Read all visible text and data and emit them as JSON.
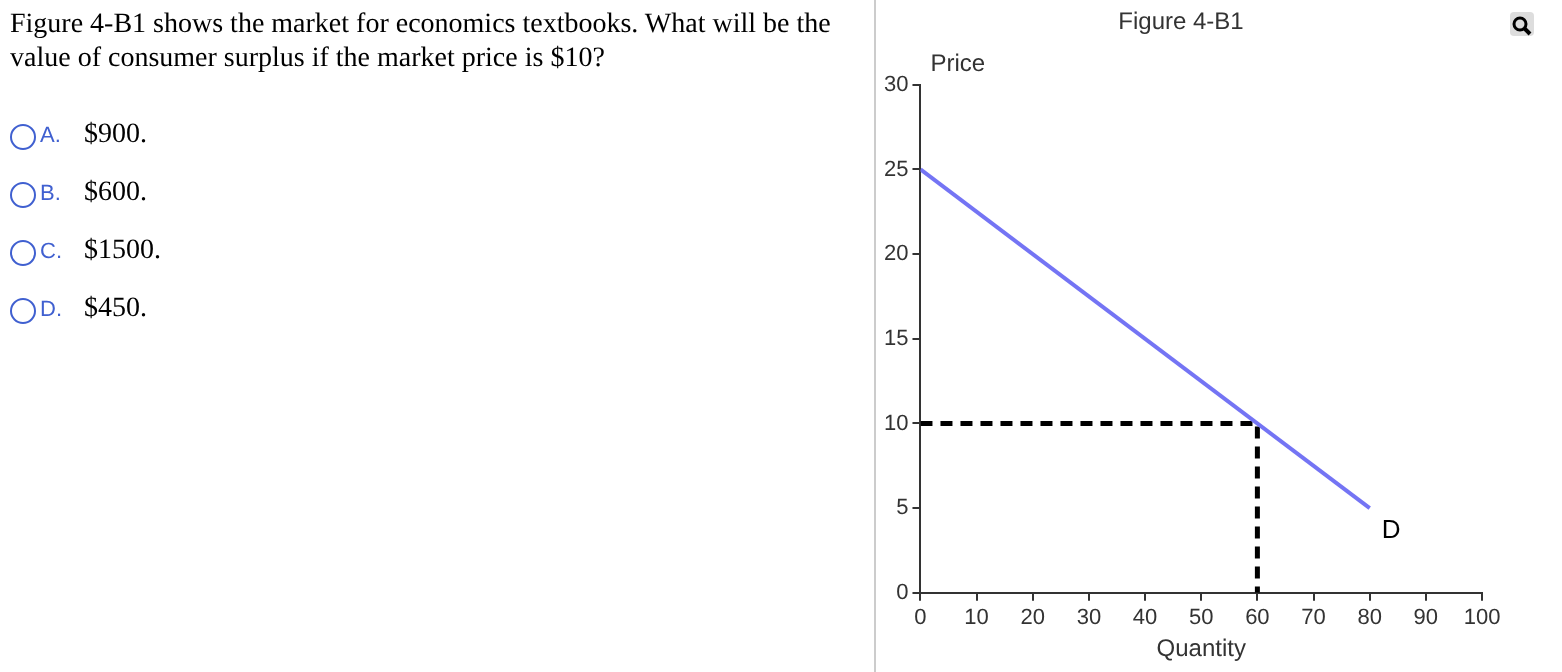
{
  "chart_data": {
    "type": "line",
    "title": "Figure 4-B1",
    "xlabel": "Quantity",
    "ylabel": "Price",
    "annotations": [
      "Figure 4-B1 shows the market for economics textbooks. What will be the value of consumer surplus if the market price is $10?",
      "A. $900.",
      "B. $600.",
      "C. $1500.",
      "D. $450."
    ],
    "series": [
      {
        "name": "D",
        "type": "line",
        "color": "#7474f4",
        "x": [
          0,
          80
        ],
        "values": [
          25,
          5
        ]
      },
      {
        "type": "line",
        "color": "#000000",
        "line_style": "dashed",
        "x": [
          0,
          60,
          60
        ],
        "values": [
          10,
          10,
          0
        ]
      }
    ],
    "xlim": [
      0,
      100
    ],
    "xticks": [
      0,
      10,
      20,
      30,
      40,
      50,
      60,
      70,
      80,
      90,
      100
    ],
    "ylim": [
      0,
      30
    ],
    "yticks": [
      0,
      5,
      10,
      15,
      20,
      25,
      30
    ],
    "grid": false,
    "legend": false,
    "marker": "none"
  }
}
